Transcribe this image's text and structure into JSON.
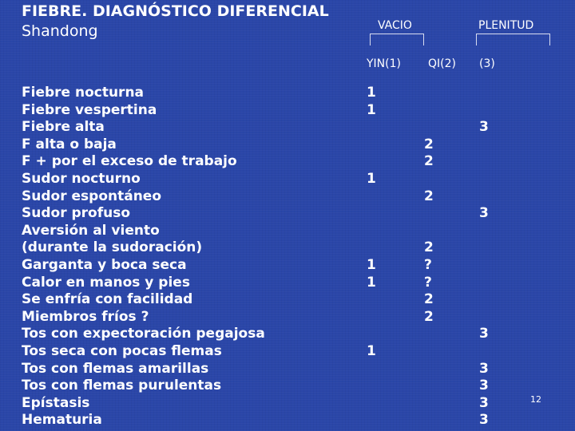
{
  "title": "FIEBRE. DIAGNÓSTICO DIFERENCIAL",
  "subtitle": "Shandong",
  "headers": {
    "vacio": "VACIO",
    "plenitud": "PLENITUD",
    "yin": "YIN(1)",
    "qi": "QI(2)",
    "col3": "(3)"
  },
  "rows": [
    {
      "label": "Fiebre nocturna",
      "yin": "1",
      "qi": "",
      "plen": ""
    },
    {
      "label": "Fiebre vespertina",
      "yin": "1",
      "qi": "",
      "plen": ""
    },
    {
      "label": "Fiebre alta",
      "yin": "",
      "qi": "",
      "plen": "3"
    },
    {
      "label": "F alta o baja",
      "yin": "",
      "qi": "2",
      "plen": ""
    },
    {
      "label": "F + por el exceso de trabajo",
      "yin": "",
      "qi": "2",
      "plen": ""
    },
    {
      "label": "Sudor nocturno",
      "yin": "1",
      "qi": "",
      "plen": ""
    },
    {
      "label": "Sudor espontáneo",
      "yin": "",
      "qi": "2",
      "plen": ""
    },
    {
      "label": "Sudor profuso",
      "yin": "",
      "qi": "",
      "plen": "3"
    },
    {
      "label": "Aversión al viento",
      "yin": "",
      "qi": "",
      "plen": ""
    },
    {
      "label": "(durante la sudoración)",
      "yin": "",
      "qi": "2",
      "plen": ""
    },
    {
      "label": "Garganta y boca seca",
      "yin": "1",
      "qi": "?",
      "plen": ""
    },
    {
      "label": "Calor en manos y pies",
      "yin": "1",
      "qi": "?",
      "plen": ""
    },
    {
      "label": "Se enfría con facilidad",
      "yin": "",
      "qi": "2",
      "plen": ""
    },
    {
      "label": "Miembros fríos ?",
      "yin": "",
      "qi": "2",
      "plen": ""
    },
    {
      "label": "Tos con expectoración pegajosa",
      "yin": "",
      "qi": "",
      "plen": "3"
    },
    {
      "label": "Tos seca con pocas flemas",
      "yin": "1",
      "qi": "",
      "plen": ""
    },
    {
      "label": "Tos con flemas amarillas",
      "yin": "",
      "qi": "",
      "plen": "3"
    },
    {
      "label": "Tos con flemas purulentas",
      "yin": "",
      "qi": "",
      "plen": "3"
    },
    {
      "label": "Epístasis",
      "yin": "",
      "qi": "",
      "plen": "3"
    },
    {
      "label": "Hematuria",
      "yin": "",
      "qi": "",
      "plen": "3"
    }
  ],
  "page_number": "12"
}
